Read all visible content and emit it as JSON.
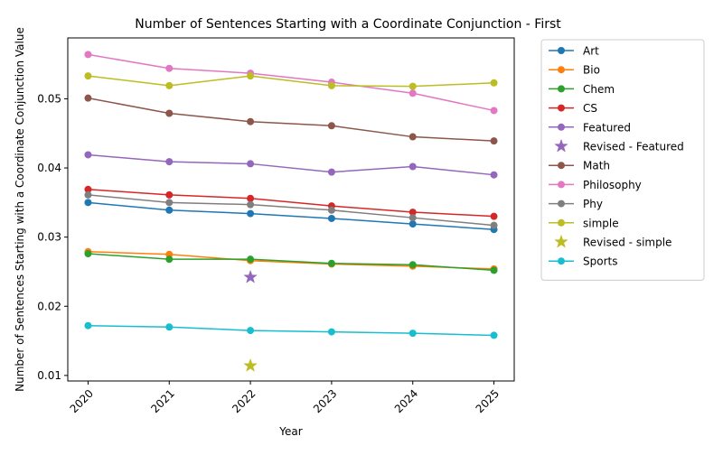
{
  "chart_data": {
    "type": "line",
    "title": "Number of Sentences Starting with a Coordinate Conjunction - First",
    "xlabel": "Year",
    "ylabel": "Number of Sentences Starting with a Coordinate Conjunction Value",
    "x": [
      "2020",
      "2021",
      "2022",
      "2023",
      "2024",
      "2025"
    ],
    "xlim": [
      2019.75,
      2025.25
    ],
    "ylim": [
      0.0092,
      0.0588
    ],
    "yticks": [
      "0.01",
      "0.02",
      "0.03",
      "0.04",
      "0.05"
    ],
    "ytick_values": [
      0.01,
      0.02,
      0.03,
      0.04,
      0.05
    ],
    "grid": false,
    "legend_position": "outside-right",
    "series": [
      {
        "name": "Art",
        "color": "#1f77b4",
        "values": [
          0.035,
          0.0339,
          0.0334,
          0.0327,
          0.0319,
          0.0311
        ]
      },
      {
        "name": "Bio",
        "color": "#ff7f0e",
        "values": [
          0.0279,
          0.0275,
          0.0266,
          0.0261,
          0.0258,
          0.0254
        ]
      },
      {
        "name": "Chem",
        "color": "#2ca02c",
        "values": [
          0.0276,
          0.0268,
          0.0268,
          0.0262,
          0.026,
          0.0252
        ]
      },
      {
        "name": "CS",
        "color": "#d62728",
        "values": [
          0.0369,
          0.0361,
          0.0356,
          0.0345,
          0.0336,
          0.033
        ]
      },
      {
        "name": "Featured",
        "color": "#9467bd",
        "values": [
          0.0419,
          0.0409,
          0.0406,
          0.0394,
          0.0402,
          0.039
        ]
      },
      {
        "name": "Revised - Featured",
        "color": "#9467bd",
        "marker": "star",
        "points": [
          {
            "x": "2022",
            "y": 0.0242
          }
        ]
      },
      {
        "name": "Math",
        "color": "#8c564b",
        "values": [
          0.0501,
          0.0479,
          0.0467,
          0.0461,
          0.0445,
          0.0439
        ]
      },
      {
        "name": "Philosophy",
        "color": "#e377c2",
        "values": [
          0.0564,
          0.0544,
          0.0537,
          0.0524,
          0.0508,
          0.0483
        ]
      },
      {
        "name": "Phy",
        "color": "#7f7f7f",
        "values": [
          0.0361,
          0.035,
          0.0347,
          0.0339,
          0.0328,
          0.0317
        ]
      },
      {
        "name": "simple",
        "color": "#bcbd22",
        "values": [
          0.0533,
          0.0519,
          0.0533,
          0.0519,
          0.0518,
          0.0523
        ]
      },
      {
        "name": "Revised - simple",
        "color": "#bcbd22",
        "marker": "star",
        "points": [
          {
            "x": "2022",
            "y": 0.0114
          }
        ]
      },
      {
        "name": "Sports",
        "color": "#17becf",
        "values": [
          0.0172,
          0.017,
          0.0165,
          0.0163,
          0.0161,
          0.0158
        ]
      }
    ]
  }
}
